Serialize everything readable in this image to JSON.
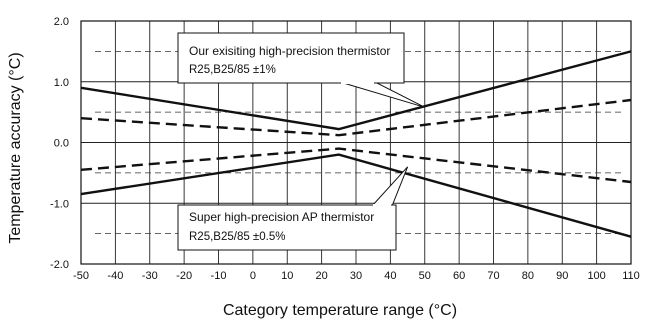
{
  "chart_data": {
    "type": "line",
    "xlabel": "Category  temperature  range (°C)",
    "ylabel": "Temperature  accuracy (°C)",
    "xlim": [
      -50,
      110
    ],
    "ylim": [
      -2.0,
      2.0
    ],
    "x_ticks": [
      -50,
      -40,
      -30,
      -20,
      -10,
      0,
      10,
      20,
      30,
      40,
      50,
      60,
      70,
      80,
      90,
      100,
      110
    ],
    "y_ticks": [
      2.0,
      1.0,
      0.0,
      -1.0,
      -2.0
    ],
    "x_tick_labels": [
      "-50",
      "-40",
      "-30",
      "-20",
      "-10",
      "0",
      "10",
      "20",
      "30",
      "40",
      "50",
      "60",
      "70",
      "80",
      "90",
      "100",
      "110"
    ],
    "y_tick_labels": [
      "2.0",
      "1.0",
      "0.0",
      "-1.0",
      "-2.0"
    ],
    "grid": {
      "vertical": true,
      "horizontal": true
    },
    "reference_lines": [
      1.5,
      0.5,
      -0.5,
      -1.5
    ],
    "series": [
      {
        "style": "solid",
        "x": [
          -50,
          25,
          110
        ],
        "y": [
          0.9,
          0.22,
          1.5
        ]
      },
      {
        "style": "solid",
        "x": [
          -50,
          25,
          110
        ],
        "y": [
          -0.85,
          -0.2,
          -1.55
        ]
      },
      {
        "style": "dashed",
        "x": [
          -50,
          25,
          110
        ],
        "y": [
          0.4,
          0.12,
          0.7
        ]
      },
      {
        "style": "dashed",
        "x": [
          -50,
          25,
          110
        ],
        "y": [
          -0.45,
          -0.1,
          -0.65
        ]
      }
    ],
    "annotations": [
      {
        "text": "Our exisiting high-precision thermistor",
        "sub": "R25,B25/85 ±1%",
        "target": {
          "x": 50,
          "y": 0.58
        }
      },
      {
        "text": "Super high-precision AP thermistor",
        "sub": "R25,B25/85 ±0.5%",
        "target": {
          "x": 45,
          "y": -0.4
        }
      }
    ]
  }
}
